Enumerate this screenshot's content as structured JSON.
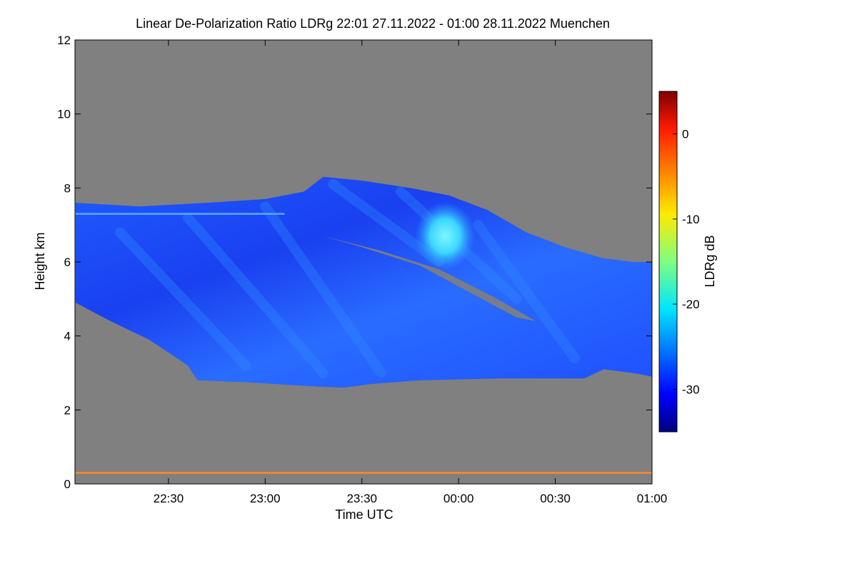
{
  "chart_data": {
    "type": "heatmap",
    "title": "Linear De-Polarization Ratio LDRg   22:01 27.11.2022 - 01:00 28.11.2022 Muenchen",
    "xlabel": "Time UTC",
    "ylabel": "Height km",
    "colorbar_label": "LDRg dB",
    "x_range_hours": [
      22.0167,
      25.0
    ],
    "y_range_km": [
      0,
      12
    ],
    "x_ticks": [
      {
        "value": 22.5,
        "label": "22:30"
      },
      {
        "value": 23.0,
        "label": "23:00"
      },
      {
        "value": 23.5,
        "label": "23:30"
      },
      {
        "value": 24.0,
        "label": "00:00"
      },
      {
        "value": 24.5,
        "label": "00:30"
      },
      {
        "value": 25.0,
        "label": "01:00"
      }
    ],
    "y_ticks": [
      0,
      2,
      4,
      6,
      8,
      10,
      12
    ],
    "colorbar_range_db": [
      -35,
      5
    ],
    "colorbar_ticks": [
      0,
      -10,
      -20,
      -30
    ],
    "no_data_color": "#808080",
    "cloud_layer": {
      "description_values": "ice cloud, LDR mostly -30 to -25 dB",
      "top_km": [
        [
          22.02,
          7.6
        ],
        [
          22.35,
          7.5
        ],
        [
          22.7,
          7.6
        ],
        [
          23.0,
          7.7
        ],
        [
          23.2,
          7.9
        ],
        [
          23.3,
          8.3
        ],
        [
          23.5,
          8.2
        ],
        [
          23.75,
          8.0
        ],
        [
          23.95,
          7.8
        ],
        [
          24.15,
          7.4
        ],
        [
          24.35,
          6.8
        ],
        [
          24.55,
          6.4
        ],
        [
          24.75,
          6.1
        ],
        [
          24.9,
          6.0
        ],
        [
          25.0,
          6.0
        ]
      ],
      "base_km": [
        [
          22.02,
          4.9
        ],
        [
          22.2,
          4.4
        ],
        [
          22.4,
          3.9
        ],
        [
          22.6,
          3.2
        ],
        [
          22.65,
          2.8
        ],
        [
          22.9,
          2.75
        ],
        [
          23.2,
          2.65
        ],
        [
          23.4,
          2.6
        ],
        [
          23.55,
          2.7
        ],
        [
          23.8,
          2.8
        ],
        [
          24.2,
          2.85
        ],
        [
          24.5,
          2.85
        ],
        [
          24.65,
          2.85
        ],
        [
          24.75,
          3.1
        ],
        [
          24.9,
          3.0
        ],
        [
          25.0,
          2.9
        ]
      ],
      "high_ldr_patch": {
        "time_h": 23.93,
        "height_km": 6.7,
        "ldr_db": -20
      }
    },
    "features": [
      {
        "name": "aerosol line",
        "height_km": 7.3,
        "time_h": [
          22.02,
          23.1
        ],
        "ldr_db": -24
      },
      {
        "name": "surface layer",
        "height_km": 0.3,
        "time_h": [
          22.02,
          25.0
        ],
        "ldr_db": -7
      }
    ]
  },
  "colors": {
    "background": "#ffffff",
    "no_data": "#808080",
    "cloud_main": "#1a4cff",
    "cloud_light": "#2f8cff",
    "patch": "#4fe8ff"
  }
}
